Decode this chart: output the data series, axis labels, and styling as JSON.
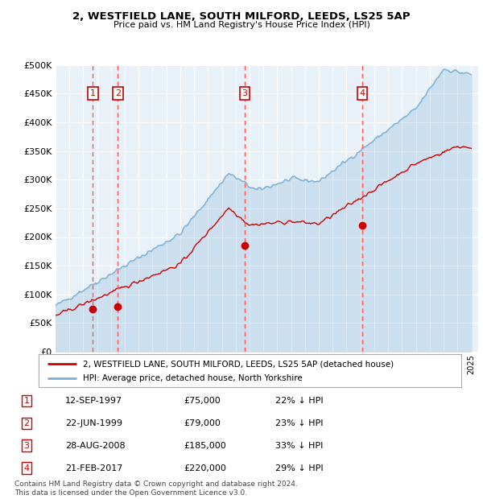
{
  "title1": "2, WESTFIELD LANE, SOUTH MILFORD, LEEDS, LS25 5AP",
  "title2": "Price paid vs. HM Land Registry's House Price Index (HPI)",
  "legend_line1": "2, WESTFIELD LANE, SOUTH MILFORD, LEEDS, LS25 5AP (detached house)",
  "legend_line2": "HPI: Average price, detached house, North Yorkshire",
  "footer": "Contains HM Land Registry data © Crown copyright and database right 2024.\nThis data is licensed under the Open Government Licence v3.0.",
  "transactions": [
    {
      "num": 1,
      "date": "12-SEP-1997",
      "year": 1997.7,
      "price": 75000,
      "pct": "22% ↓ HPI"
    },
    {
      "num": 2,
      "date": "22-JUN-1999",
      "year": 1999.5,
      "price": 79000,
      "pct": "23% ↓ HPI"
    },
    {
      "num": 3,
      "date": "28-AUG-2008",
      "year": 2008.65,
      "price": 185000,
      "pct": "33% ↓ HPI"
    },
    {
      "num": 4,
      "date": "21-FEB-2017",
      "year": 2017.13,
      "price": 220000,
      "pct": "29% ↓ HPI"
    }
  ],
  "ylim": [
    0,
    500000
  ],
  "yticks": [
    0,
    50000,
    100000,
    150000,
    200000,
    250000,
    300000,
    350000,
    400000,
    450000,
    500000
  ],
  "xlim_start": 1995.0,
  "xlim_end": 2025.5,
  "plot_bg": "#e8f0f8",
  "red_color": "#cc0000",
  "blue_color": "#7bafd4",
  "dashed_color": "#ff5555"
}
